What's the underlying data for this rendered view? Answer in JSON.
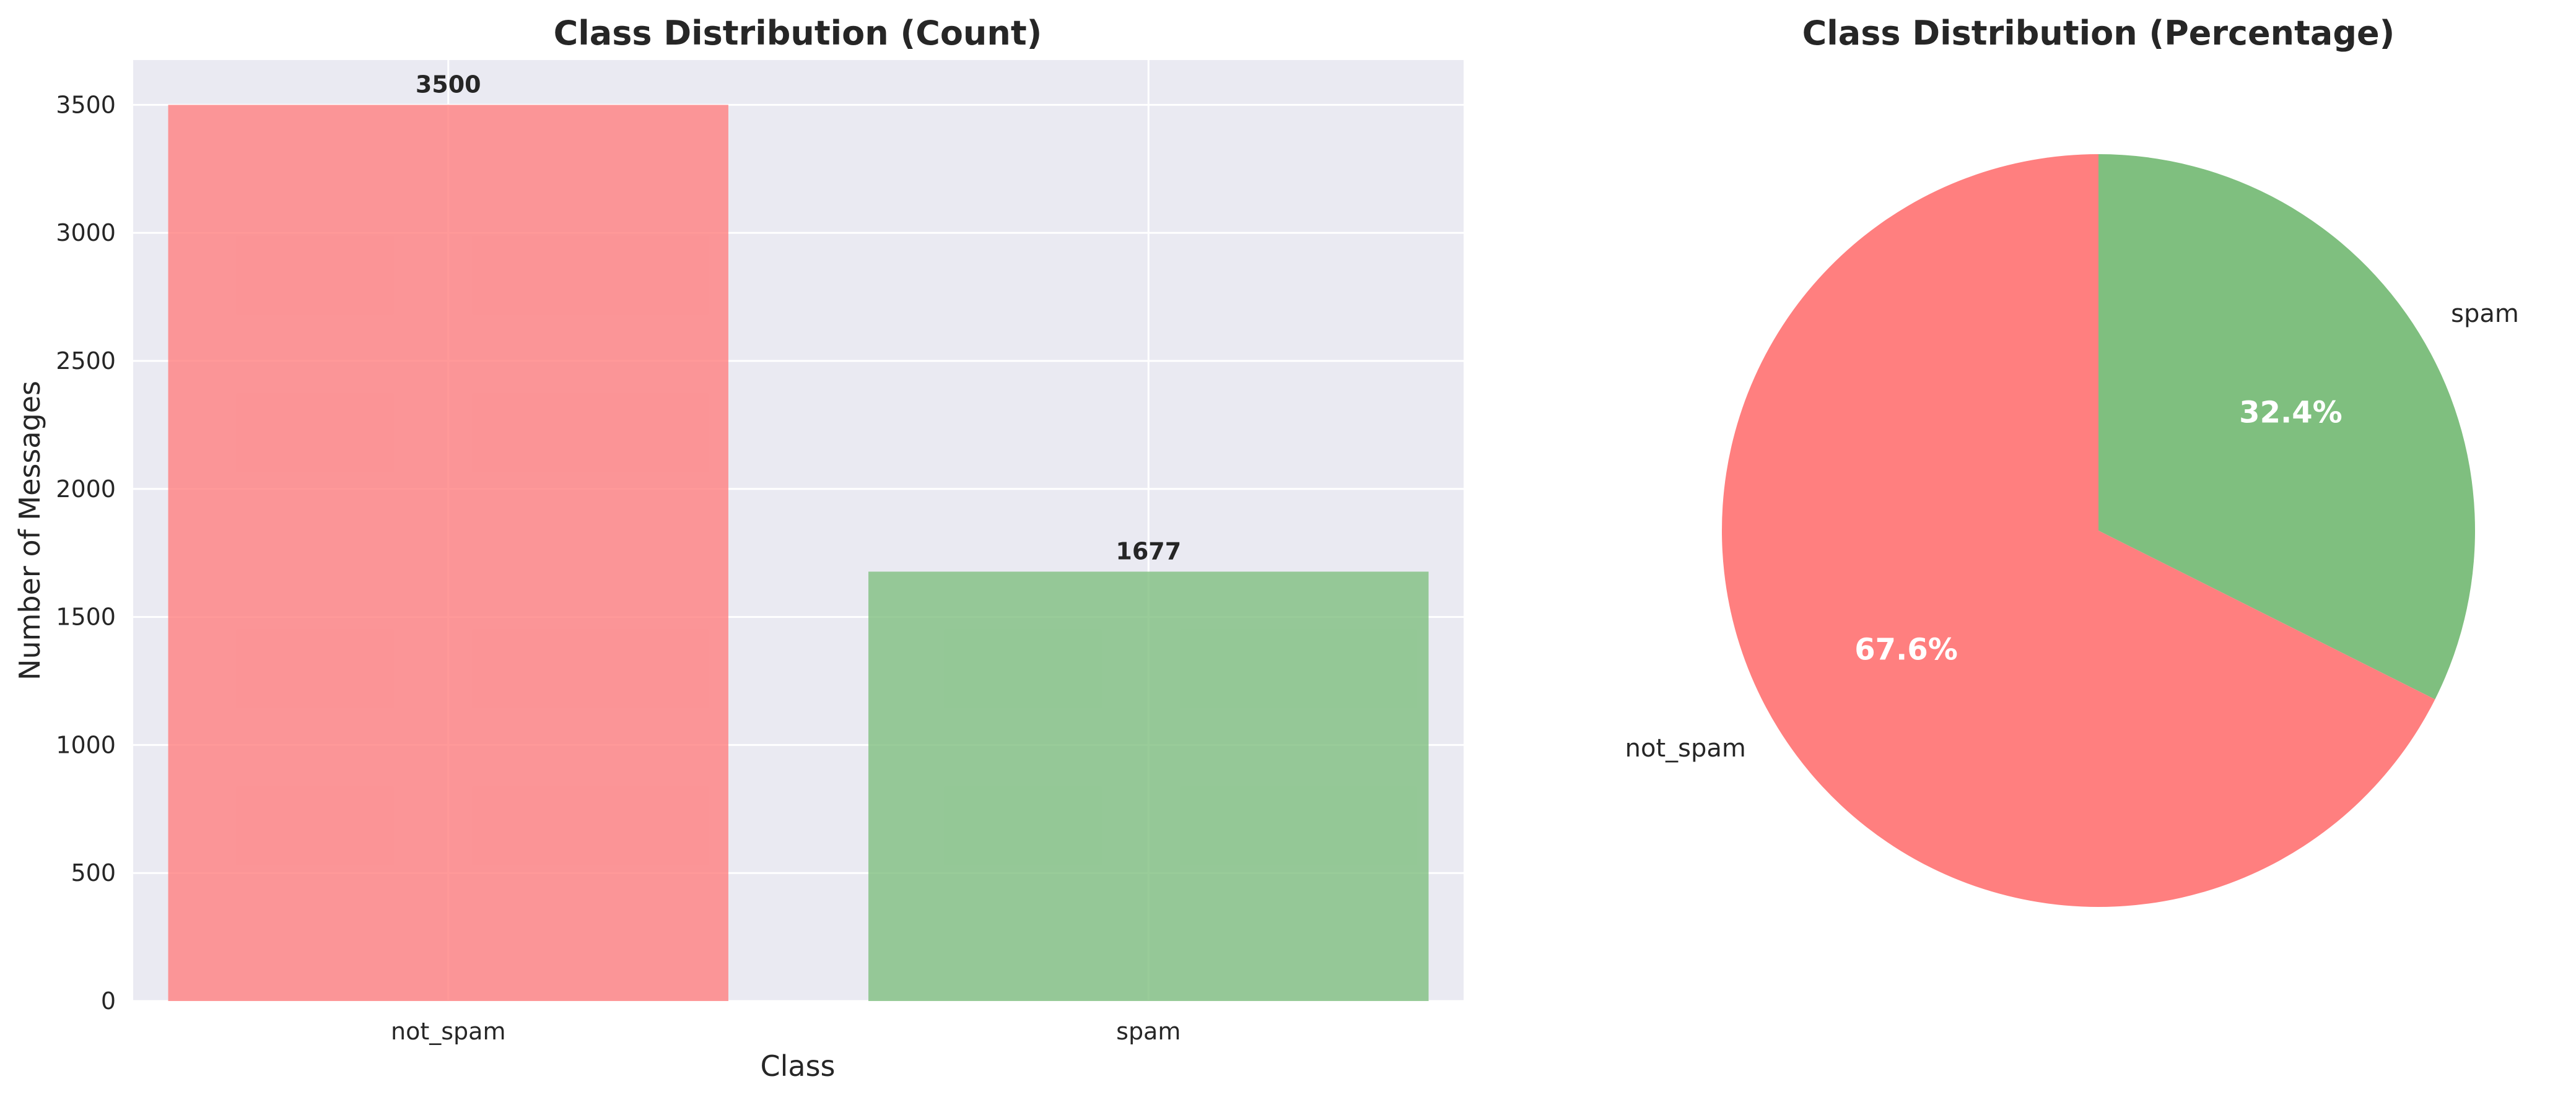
{
  "colors": {
    "not_spam": "#ff7f7f",
    "spam": "#7fbf7f",
    "plot_bg": "#eaeaf2",
    "grid": "#ffffff"
  },
  "chart_data": [
    {
      "type": "bar",
      "title": "Class Distribution (Count)",
      "xlabel": "Class",
      "ylabel": "Number of Messages",
      "categories": [
        "not_spam",
        "spam"
      ],
      "values": [
        3500,
        1677
      ],
      "value_labels": [
        "3500",
        "1677"
      ],
      "ylim": [
        0,
        3675
      ],
      "yticks": [
        0,
        500,
        1000,
        1500,
        2000,
        2500,
        3000,
        3500
      ],
      "ytick_labels": [
        "0",
        "500",
        "1000",
        "1500",
        "2000",
        "2500",
        "3000",
        "3500"
      ],
      "grid": true
    },
    {
      "type": "pie",
      "title": "Class Distribution (Percentage)",
      "labels": [
        "not_spam",
        "spam"
      ],
      "values": [
        67.6,
        32.4
      ],
      "pct_labels": [
        "67.6%",
        "32.4%"
      ],
      "start_angle_deg": 90,
      "direction": "counterclockwise"
    }
  ]
}
